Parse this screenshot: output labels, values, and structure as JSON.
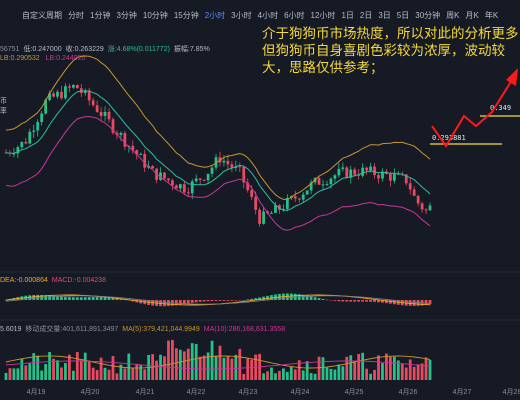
{
  "header": {
    "tabs": [
      "自定义周期",
      "分时",
      "1分钟",
      "3分钟",
      "10分钟",
      "15分钟",
      "2小时",
      "3小时",
      "4小时",
      "6小时",
      "12小时",
      "1日",
      "2日",
      "3日",
      "5日",
      "30分钟",
      "周K",
      "月K",
      "年K"
    ],
    "active_tab": "2小时",
    "left_label": "币率"
  },
  "legend": {
    "ohlc": [
      "56751",
      "低:0.247000",
      "收:0.263229",
      "涨:4.68%(0.011772)",
      "振幅:7.85%"
    ],
    "boll": "LB:0.290532",
    "boll2": "LB:0.244020",
    "macd": [
      "DEA:-0.000864",
      "MACD:-0.004238"
    ],
    "vol": [
      "5.6019",
      "移动成交量:401,611,891.3497",
      "MA(5):379,421,044.9949",
      "MA(10):286,168,631.3558"
    ]
  },
  "annotation": "介于狗狗币市场热度，所以对此的分析更多但狗狗币自身喜剧色彩较为浓厚，波动较大，思路仅供参考；",
  "chart_data": {
    "type": "candlestick",
    "x_labels": [
      "4月19",
      "4月20",
      "4月21",
      "4月22",
      "4月23",
      "4月24",
      "4月25",
      "4月26",
      "4月27",
      "4月28"
    ],
    "price_levels": [
      0.293881,
      0.349
    ],
    "price_level_labels": [
      "0.293881",
      "0.349"
    ],
    "colors": {
      "up": "#26c08a",
      "down": "#e84a5f",
      "boll_upper": "#c8962e",
      "boll_mid": "#2bbfa4",
      "boll_lower": "#c9379a",
      "level": "#f5d93a",
      "arrow": "#ff1a1a",
      "macd_dif": "#f5a623",
      "macd_dea": "#7d7d7d"
    }
  }
}
